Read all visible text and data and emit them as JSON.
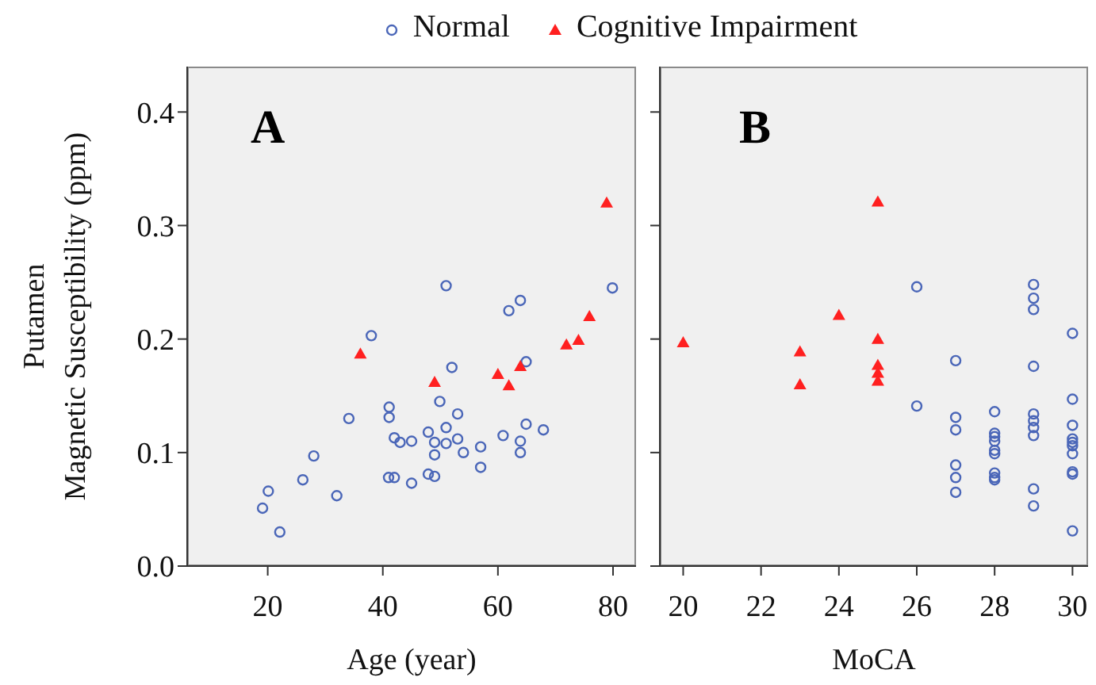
{
  "chart_data": [
    {
      "type": "scatter",
      "title": "A",
      "xlabel": "Age (year)",
      "ylabel": "Putamen\nMagnetic Susceptibility (ppm)",
      "xlim": [
        6,
        84
      ],
      "xticks": [
        20,
        40,
        60,
        80
      ],
      "ylim": [
        0,
        0.44
      ],
      "yticks": [
        {
          "value": 0,
          "label": "0.0"
        },
        0.1,
        0.2,
        0.3,
        0.4
      ],
      "legend": "top",
      "series": [
        {
          "name": "Normal",
          "color": "#4a66b8",
          "marker": "circle",
          "x": [
            38.0,
            41.1,
            41.1,
            34.1,
            42.0,
            43.0,
            45.0,
            28.0,
            26.1,
            41.0,
            42.0,
            45.0,
            20.1,
            32.0,
            19.1,
            22.1,
            51.0,
            63.9,
            61.9,
            79.9,
            64.9,
            52.0,
            49.9,
            53.0,
            51.0,
            64.9,
            67.9,
            47.9,
            60.9,
            49.0,
            51.0,
            53.0,
            63.9,
            57.0,
            49.0,
            54.0,
            63.9,
            57.0,
            47.9,
            49.0
          ],
          "values": [
            0.203,
            0.14,
            0.131,
            0.13,
            0.113,
            0.109,
            0.11,
            0.097,
            0.076,
            0.078,
            0.078,
            0.073,
            0.066,
            0.062,
            0.051,
            0.03,
            0.247,
            0.234,
            0.225,
            0.245,
            0.18,
            0.175,
            0.145,
            0.134,
            0.122,
            0.125,
            0.12,
            0.118,
            0.115,
            0.109,
            0.108,
            0.112,
            0.11,
            0.105,
            0.098,
            0.1,
            0.1,
            0.087,
            0.081,
            0.079
          ]
        },
        {
          "name": "Cognitive Impairment",
          "color": "#ff2020",
          "marker": "triangle",
          "x": [
            36.1,
            49.0,
            60.0,
            61.9,
            63.9,
            71.9,
            74.0,
            75.9,
            78.9
          ],
          "values": [
            0.187,
            0.162,
            0.169,
            0.159,
            0.176,
            0.195,
            0.199,
            0.22,
            0.32
          ]
        }
      ]
    },
    {
      "type": "scatter",
      "title": "B",
      "xlabel": "MoCA",
      "xlim": [
        19.4,
        30.4
      ],
      "xticks": [
        20,
        22,
        24,
        26,
        28,
        30
      ],
      "ylim": [
        0,
        0.44
      ],
      "yticks": [
        {
          "value": 0,
          "label": null
        },
        {
          "value": 0.1,
          "label": null
        },
        {
          "value": 0.2,
          "label": null
        },
        {
          "value": 0.3,
          "label": null
        },
        {
          "value": 0.4,
          "label": null
        }
      ],
      "tick_labels": "x",
      "series": [
        {
          "color": "#4a66b8",
          "marker": "circle",
          "x": [
            26,
            26,
            27,
            27,
            27,
            27,
            27,
            27,
            28,
            28,
            28,
            28,
            28,
            28,
            28,
            28,
            28,
            29,
            29,
            29,
            29,
            29,
            29,
            29,
            29,
            29,
            29,
            30,
            30,
            30,
            30,
            30,
            30,
            30,
            30,
            30,
            30
          ],
          "values": [
            0.246,
            0.141,
            0.181,
            0.131,
            0.12,
            0.089,
            0.078,
            0.065,
            0.136,
            0.117,
            0.114,
            0.11,
            0.102,
            0.099,
            0.082,
            0.078,
            0.076,
            0.248,
            0.236,
            0.226,
            0.176,
            0.134,
            0.128,
            0.122,
            0.115,
            0.068,
            0.053,
            0.205,
            0.147,
            0.124,
            0.112,
            0.109,
            0.106,
            0.099,
            0.083,
            0.081,
            0.031
          ]
        },
        {
          "color": "#ff2020",
          "marker": "triangle",
          "x": [
            20,
            23,
            23,
            24,
            25,
            25,
            25,
            25,
            25
          ],
          "values": [
            0.197,
            0.189,
            0.16,
            0.221,
            0.321,
            0.2,
            0.177,
            0.17,
            0.163
          ]
        }
      ]
    }
  ]
}
